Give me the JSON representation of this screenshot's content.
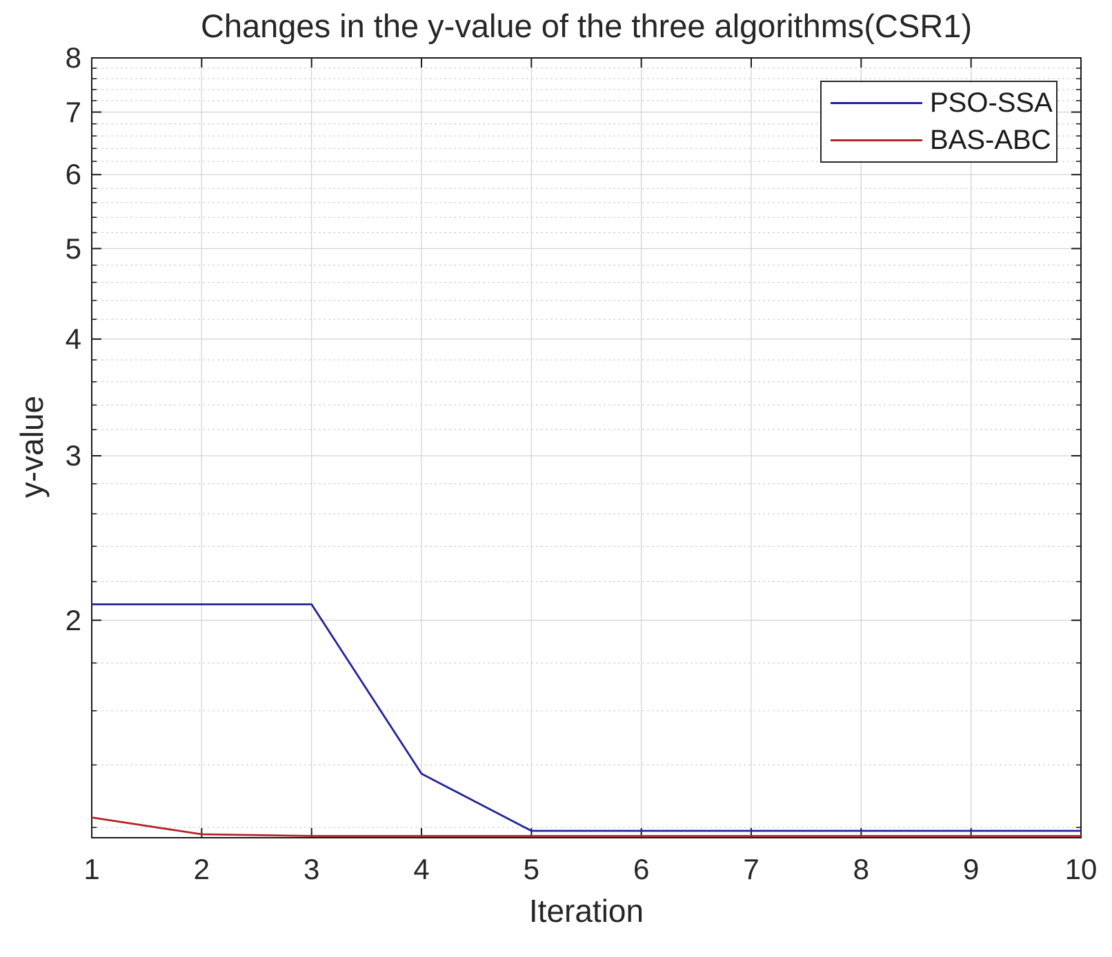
{
  "figure": {
    "title": "Changes in the y-value of the three algorithms(CSR1)",
    "xlabel": "Iteration",
    "ylabel": "y-value"
  },
  "legend": {
    "position": "upper-right",
    "entries": [
      {
        "label": "PSO-SSA",
        "color": "#22229b"
      },
      {
        "label": "BAS-ABC",
        "color": "#b32424"
      }
    ]
  },
  "chart_data": {
    "type": "line",
    "title": "Changes in the y-value of the three algorithms(CSR1)",
    "xlabel": "Iteration",
    "ylabel": "y-value",
    "x": [
      1,
      2,
      3,
      4,
      5,
      6,
      7,
      8,
      9,
      10
    ],
    "series": [
      {
        "name": "PSO-SSA",
        "color": "#22229b",
        "values": [
          2.08,
          2.08,
          2.08,
          1.37,
          1.19,
          1.19,
          1.19,
          1.19,
          1.19,
          1.19
        ]
      },
      {
        "name": "BAS-ABC",
        "color": "#b32424",
        "values": [
          1.23,
          1.18,
          1.175,
          1.175,
          1.175,
          1.175,
          1.175,
          1.175,
          1.175,
          1.175
        ]
      }
    ],
    "xlim": [
      1,
      10
    ],
    "ylim": [
      1.17,
      8
    ],
    "yscale": "log",
    "xticks": [
      1,
      2,
      3,
      4,
      5,
      6,
      7,
      8,
      9,
      10
    ],
    "yticks": [
      8,
      7,
      6,
      5,
      4,
      3,
      2
    ],
    "y_minor_tick_step": 0.2,
    "grid": true,
    "minor_grid": true,
    "legend_position": "upper right"
  },
  "style": {
    "grid_major_color": "#d4d4d4",
    "grid_minor_color": "#c6c6c6",
    "axis_color": "#1a1a1a",
    "text_color": "#262626",
    "background": "#ffffff"
  }
}
